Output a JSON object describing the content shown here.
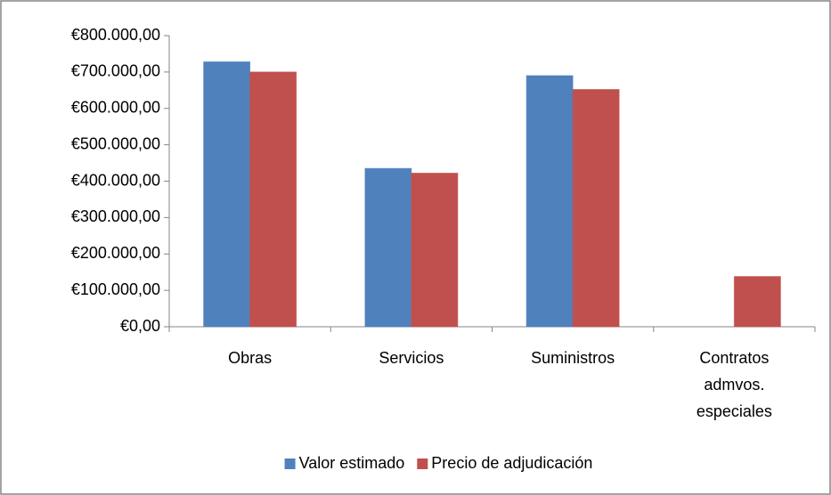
{
  "chart_data": {
    "type": "bar",
    "categories": [
      "Obras",
      "Servicios",
      "Suministros",
      "Contratos admvos. especiales"
    ],
    "series": [
      {
        "name": "Valor estimado",
        "color": "#4f81bd",
        "values": [
          728000,
          435000,
          690000,
          0
        ]
      },
      {
        "name": "Precio de adjudicación",
        "color": "#c0504d",
        "values": [
          700000,
          422000,
          652000,
          138000
        ]
      }
    ],
    "ylim": [
      0,
      800000
    ],
    "yticks": [
      {
        "value": 0,
        "label": "€0,00"
      },
      {
        "value": 100000,
        "label": "€100.000,00"
      },
      {
        "value": 200000,
        "label": "€200.000,00"
      },
      {
        "value": 300000,
        "label": "€300.000,00"
      },
      {
        "value": 400000,
        "label": "€400.000,00"
      },
      {
        "value": 500000,
        "label": "€500.000,00"
      },
      {
        "value": 600000,
        "label": "€600.000,00"
      },
      {
        "value": 700000,
        "label": "€700.000,00"
      },
      {
        "value": 800000,
        "label": "€800.000,00"
      }
    ],
    "grid": false,
    "legend": "bottom"
  }
}
